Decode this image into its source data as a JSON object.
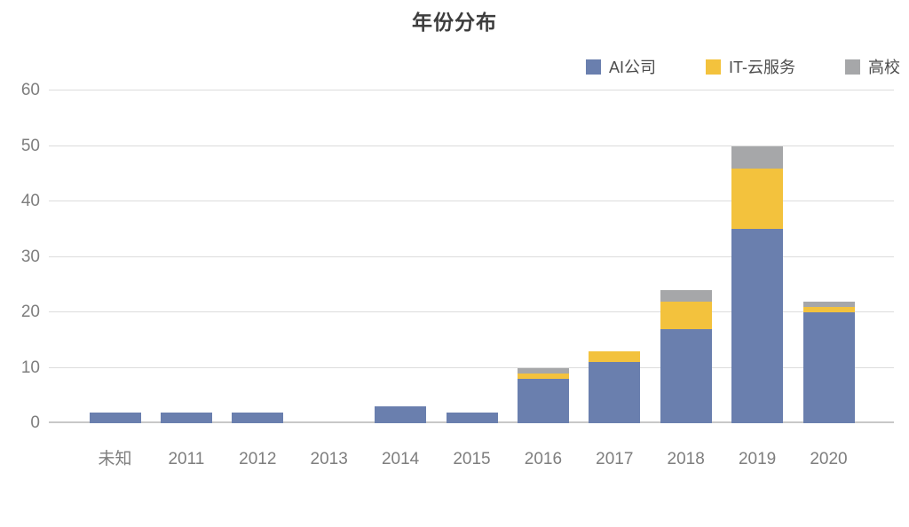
{
  "chart_data": {
    "type": "bar",
    "stacked": true,
    "title": "年份分布",
    "categories": [
      "未知",
      "2011",
      "2012",
      "2013",
      "2014",
      "2015",
      "2016",
      "2017",
      "2018",
      "2019",
      "2020"
    ],
    "series": [
      {
        "name": "AI公司",
        "color": "#6a7fae",
        "values": [
          2,
          2,
          2,
          0,
          3,
          2,
          8,
          11,
          17,
          35,
          20
        ]
      },
      {
        "name": "IT-云服务",
        "color": "#f3c23d",
        "values": [
          0,
          0,
          0,
          0,
          0,
          0,
          1,
          2,
          5,
          11,
          1
        ]
      },
      {
        "name": "高校",
        "color": "#a6a7a9",
        "values": [
          0,
          0,
          0,
          0,
          0,
          0,
          1,
          0,
          2,
          4,
          1
        ]
      }
    ],
    "totals": [
      2,
      2,
      2,
      0,
      3,
      2,
      10,
      13,
      24,
      50,
      22
    ],
    "xlabel": "",
    "ylabel": "",
    "ylim": [
      0,
      60
    ],
    "yticks": [
      0,
      10,
      20,
      30,
      40,
      50,
      60
    ],
    "grid": true,
    "legend_position": "top-right",
    "colors": {
      "title_text": "#3d3d3d",
      "legend_text": "#4d4d4d",
      "axis_text": "#7e7e7e",
      "gridline": "#dcdcdc",
      "axis_line": "#c8c8c8",
      "background": "#ffffff"
    }
  }
}
